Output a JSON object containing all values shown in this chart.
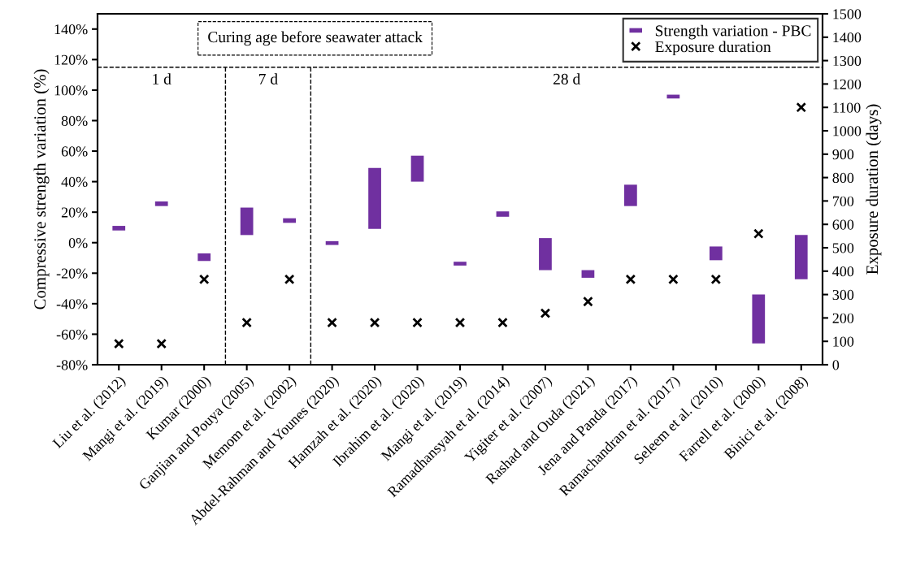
{
  "chart_data": {
    "type": "bar",
    "ylabel": "Compressive strength variation (%)",
    "y2label": "Exposure duration (days)",
    "categories": [
      "Liu et al. (2012)",
      "Mangi et al. (2019)",
      "Kumar (2000)",
      "Ganjian and Pouya (2005)",
      "Memom et al. (2002)",
      "Abdel-Rahman and Younes (2020)",
      "Hamzah et al. (2020)",
      "Ibrahim et al. (2020)",
      "Mangi et al. (2019)",
      "Ramadhansyah et al. (2014)",
      "Yigiter et al. (2007)",
      "Rashad and Ouda (2021)",
      "Jena and Panda (2017)",
      "Ramachandran et al. (2017)",
      "Seleem et al. (2010)",
      "Farrell et al. (2000)",
      "Binici et al. (2008)"
    ],
    "series": [
      {
        "name": "Strength variation - PBC",
        "color": "#7030a0",
        "base": [
          8,
          24,
          -12,
          5,
          13,
          -1.5,
          9,
          40,
          -15,
          17,
          -18,
          -23,
          24,
          94.5,
          -11.5,
          -66,
          -24
        ],
        "values": [
          3,
          3,
          5,
          18,
          3,
          2.5,
          40,
          17,
          2.5,
          3.5,
          21,
          5,
          14,
          2.5,
          9,
          32,
          29
        ]
      },
      {
        "name": "Exposure duration",
        "type": "scatter",
        "axis": "y2",
        "color": "#000000",
        "marker": "cross",
        "values": [
          90,
          90,
          365,
          180,
          365,
          180,
          180,
          180,
          180,
          180,
          220,
          270,
          365,
          365,
          365,
          560,
          1100
        ]
      }
    ],
    "ylim": [
      -80,
      150
    ],
    "yticks": [
      {
        "value": -80,
        "label": "-80%"
      },
      {
        "value": -60,
        "label": "-60%"
      },
      {
        "value": -40,
        "label": "-40%"
      },
      {
        "value": -20,
        "label": "-20%"
      },
      {
        "value": 0,
        "label": "0%"
      },
      {
        "value": 20,
        "label": "20%"
      },
      {
        "value": 40,
        "label": "40%"
      },
      {
        "value": 60,
        "label": "60%"
      },
      {
        "value": 80,
        "label": "80%"
      },
      {
        "value": 100,
        "label": "100%"
      },
      {
        "value": 120,
        "label": "120%"
      },
      {
        "value": 140,
        "label": "140%"
      }
    ],
    "y2lim": [
      0,
      1500
    ],
    "y2ticks": [
      0,
      100,
      200,
      300,
      400,
      500,
      600,
      700,
      800,
      900,
      1000,
      1100,
      1200,
      1300,
      1400,
      1500
    ],
    "ref_lines": [
      {
        "axis": "y",
        "value": 115,
        "line_style": "dashed",
        "color": "#000000"
      }
    ],
    "annotations": [
      "Curing age before seawater attack",
      "1 d",
      "7 d",
      "28 d"
    ],
    "legend": "top right",
    "grid": false
  }
}
